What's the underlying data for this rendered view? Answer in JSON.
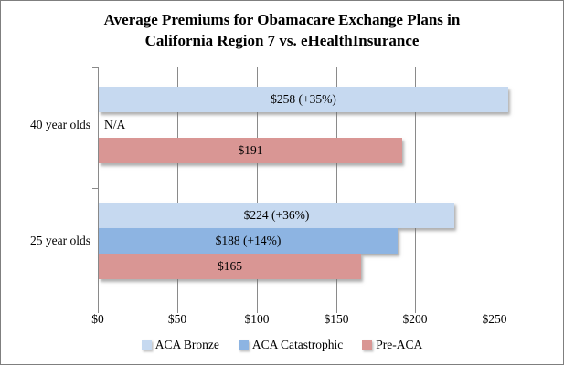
{
  "title": {
    "line1": "Average Premiums for Obamacare Exchange Plans in",
    "line2": "California Region 7 vs. eHealthInsurance"
  },
  "colors": {
    "aca_bronze": "#C6D9F0",
    "aca_catastrophic": "#8DB4E2",
    "pre_aca": "#D99694",
    "gridline": "#8a8a8a",
    "axis": "#8a8a8a",
    "frame_border": "#7f7f7f",
    "label_text": "#000000"
  },
  "chart_data": {
    "type": "bar",
    "orientation": "horizontal",
    "title": "Average Premiums for Obamacare Exchange Plans in California Region 7 vs. eHealthInsurance",
    "categories": [
      "40 year olds",
      "25 year olds"
    ],
    "series": [
      {
        "name": "ACA Bronze",
        "color": "#C6D9F0",
        "values": [
          258,
          224
        ],
        "bar_labels": [
          "$258 (+35%)",
          "$224 (+36%)"
        ]
      },
      {
        "name": "ACA Catastrophic",
        "color": "#8DB4E2",
        "values": [
          null,
          188
        ],
        "bar_labels": [
          "N/A",
          "$188 (+14%)"
        ]
      },
      {
        "name": "Pre-ACA",
        "color": "#D99694",
        "values": [
          191,
          165
        ],
        "bar_labels": [
          "$191",
          "$165"
        ]
      }
    ],
    "x_axis": {
      "ticks": [
        {
          "value": 0,
          "label": "$0"
        },
        {
          "value": 50,
          "label": "$50"
        },
        {
          "value": 100,
          "label": "$100"
        },
        {
          "value": 150,
          "label": "$150"
        },
        {
          "value": 200,
          "label": "$200"
        },
        {
          "value": 250,
          "label": "$250"
        }
      ],
      "min": 0,
      "max": 275
    },
    "xlabel": "",
    "ylabel": "",
    "grid": true,
    "legend_position": "bottom"
  }
}
